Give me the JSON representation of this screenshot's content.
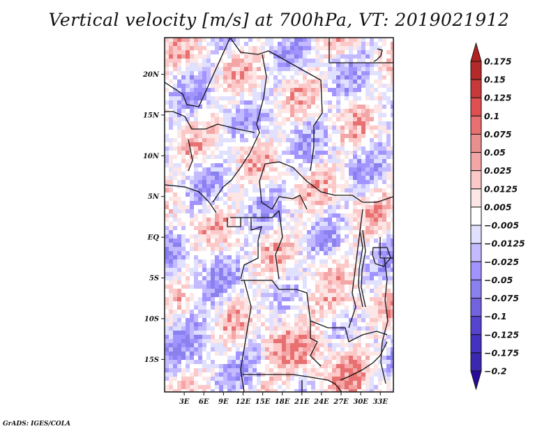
{
  "title": "Vertical velocity [m/s] at 700hPa, VT: 2019021912",
  "footer": "GrADS: IGES/COLA",
  "map": {
    "projection": "latlon",
    "lon_range": [
      0,
      35
    ],
    "lat_range": [
      -19,
      24.5
    ],
    "y_ticks": [
      {
        "value": 20,
        "label": "20N"
      },
      {
        "value": 15,
        "label": "15N"
      },
      {
        "value": 10,
        "label": "10N"
      },
      {
        "value": 5,
        "label": "5N"
      },
      {
        "value": 0,
        "label": "EQ"
      },
      {
        "value": -5,
        "label": "5S"
      },
      {
        "value": -10,
        "label": "10S"
      },
      {
        "value": -15,
        "label": "15S"
      }
    ],
    "x_ticks": [
      {
        "value": 3,
        "label": "3E"
      },
      {
        "value": 6,
        "label": "6E"
      },
      {
        "value": 9,
        "label": "9E"
      },
      {
        "value": 12,
        "label": "12E"
      },
      {
        "value": 15,
        "label": "15E"
      },
      {
        "value": 18,
        "label": "18E"
      },
      {
        "value": 21,
        "label": "21E"
      },
      {
        "value": 24,
        "label": "24E"
      },
      {
        "value": 27,
        "label": "27E"
      },
      {
        "value": 30,
        "label": "30E"
      },
      {
        "value": 33,
        "label": "33E"
      }
    ],
    "field": "Vertical velocity",
    "units": "m/s",
    "level": "700hPa",
    "valid_time": "2019021912"
  },
  "colorbar": {
    "labels": [
      "0.175",
      "0.15",
      "0.125",
      "0.1",
      "0.075",
      "0.05",
      "0.025",
      "0.0125",
      "0.005",
      "-0.005",
      "-0.0125",
      "-0.025",
      "-0.05",
      "-0.075",
      "-0.1",
      "-0.125",
      "-0.175",
      "-0.2"
    ],
    "colors_top_to_bottom": [
      "#b42a2a",
      "#c83a3a",
      "#e05050",
      "#e87070",
      "#e89090",
      "#f4a6a6",
      "#fcc8c8",
      "#fde6e6",
      "#ffffff",
      "#e0e0ff",
      "#c4baff",
      "#a294ff",
      "#8a80ee",
      "#7264de",
      "#5444d0",
      "#4432c0",
      "#3a28b0",
      "#2c1c9a"
    ],
    "top_arrow_color": "#b22222",
    "bottom_arrow_color": "#2a0a9c"
  }
}
